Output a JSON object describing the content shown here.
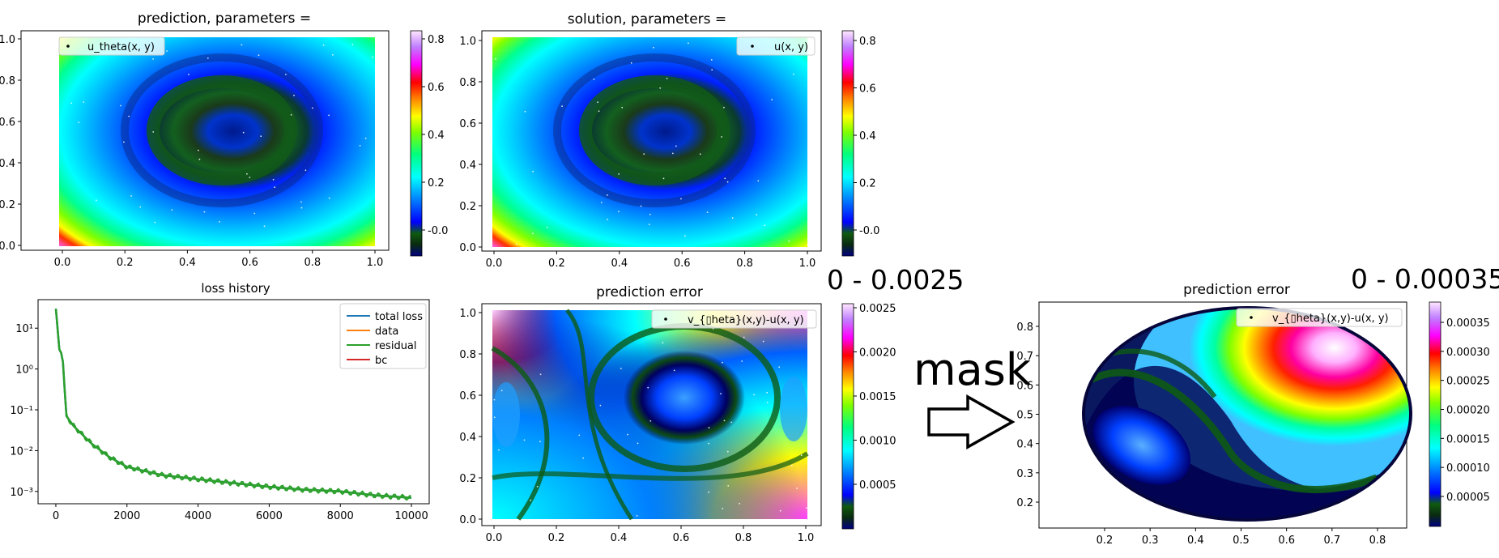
{
  "panels": {
    "prediction": {
      "title": "prediction, parameters =",
      "legend": "u_theta(x, y)",
      "x_ticks": [
        "0.0",
        "0.2",
        "0.4",
        "0.6",
        "0.8",
        "1.0"
      ],
      "y_ticks": [
        "0.0",
        "0.2",
        "0.4",
        "0.6",
        "0.8",
        "1.0"
      ],
      "colorbar_ticks": [
        "-0.0",
        "0.2",
        "0.4",
        "0.6",
        "0.8"
      ]
    },
    "solution": {
      "title": "solution, parameters =",
      "legend": "u(x, y)",
      "x_ticks": [
        "0.0",
        "0.2",
        "0.4",
        "0.6",
        "0.8",
        "1.0"
      ],
      "y_ticks": [
        "0.0",
        "0.2",
        "0.4",
        "0.6",
        "0.8",
        "1.0"
      ],
      "colorbar_ticks": [
        "-0.0",
        "0.2",
        "0.4",
        "0.6",
        "0.8"
      ]
    },
    "loss": {
      "title": "loss history",
      "x_ticks": [
        "0",
        "2000",
        "4000",
        "6000",
        "8000",
        "10000"
      ],
      "y_ticks": [
        "10⁻³",
        "10⁻²",
        "10⁻¹",
        "10⁰",
        "10¹"
      ],
      "legend": [
        "total loss",
        "data",
        "residual",
        "bc"
      ]
    },
    "error": {
      "title": "prediction error",
      "legend": "v_{▯heta}(x,y)-u(x, y)",
      "x_ticks": [
        "0.0",
        "0.2",
        "0.4",
        "0.6",
        "0.8",
        "1.0"
      ],
      "y_ticks": [
        "0.0",
        "0.2",
        "0.4",
        "0.6",
        "0.8",
        "1.0"
      ],
      "colorbar_ticks": [
        "0.0005",
        "0.0010",
        "0.0015",
        "0.0020",
        "0.0025"
      ],
      "range_label": "0 - 0.0025"
    },
    "masked_error": {
      "title": "prediction error",
      "legend": "v_{▯heta}(x,y)-u(x, y)",
      "x_ticks": [
        "0.2",
        "0.3",
        "0.4",
        "0.5",
        "0.6",
        "0.7",
        "0.8"
      ],
      "y_ticks": [
        "0.2",
        "0.3",
        "0.4",
        "0.5",
        "0.6",
        "0.7",
        "0.8"
      ],
      "colorbar_ticks": [
        "0.00005",
        "0.00010",
        "0.00015",
        "0.00020",
        "0.00025",
        "0.00030",
        "0.00035"
      ],
      "range_label": "0 - 0.00035"
    }
  },
  "arrow": {
    "label": "mask"
  },
  "colors": {
    "total_loss": "#1f77b4",
    "data": "#ff7f0e",
    "residual": "#2ca02c",
    "bc": "#d62728"
  },
  "chart_data": [
    {
      "type": "heatmap",
      "title": "prediction, parameters =",
      "series_label": "u_theta(x, y)",
      "xlim": [
        0,
        1
      ],
      "ylim": [
        0,
        1
      ],
      "colorbar_range": [
        -0.07,
        0.84
      ],
      "colormap": "gist_ncar",
      "minimum_near": [
        0.55,
        0.55
      ]
    },
    {
      "type": "heatmap",
      "title": "solution, parameters =",
      "series_label": "u(x, y)",
      "xlim": [
        0,
        1
      ],
      "ylim": [
        0,
        1
      ],
      "colorbar_range": [
        -0.07,
        0.84
      ],
      "colormap": "gist_ncar",
      "minimum_near": [
        0.55,
        0.55
      ]
    },
    {
      "type": "line",
      "title": "loss history",
      "yscale": "log",
      "xlim": [
        -500,
        10500
      ],
      "ylim": [
        0.0005,
        50
      ],
      "series": [
        {
          "name": "total loss",
          "x": [
            0,
            100,
            150,
            200,
            250,
            300,
            500,
            1000,
            1500,
            2000,
            3000,
            4000,
            5000,
            6000,
            7000,
            8000,
            9000,
            10000
          ],
          "values": [
            30,
            3,
            2.5,
            1.5,
            0.3,
            0.07,
            0.04,
            0.015,
            0.007,
            0.004,
            0.0025,
            0.002,
            0.0016,
            0.0013,
            0.0011,
            0.001,
            0.0008,
            0.0007
          ]
        },
        {
          "name": "data",
          "x": [
            0,
            10000
          ],
          "values": [
            null,
            null
          ]
        },
        {
          "name": "residual",
          "x": [
            0,
            100,
            150,
            200,
            250,
            300,
            500,
            1000,
            1500,
            2000,
            3000,
            4000,
            5000,
            6000,
            7000,
            8000,
            9000,
            10000
          ],
          "values": [
            30,
            3,
            2.5,
            1.5,
            0.3,
            0.07,
            0.04,
            0.015,
            0.007,
            0.004,
            0.0025,
            0.002,
            0.0016,
            0.0013,
            0.0011,
            0.001,
            0.0008,
            0.0007
          ]
        },
        {
          "name": "bc",
          "x": [
            0,
            10000
          ],
          "values": [
            null,
            null
          ]
        }
      ]
    },
    {
      "type": "heatmap",
      "title": "prediction error",
      "series_label": "v_{▯heta}(x,y)-u(x, y)",
      "xlim": [
        0,
        1
      ],
      "ylim": [
        0,
        1
      ],
      "colorbar_range": [
        0,
        0.0025
      ],
      "colormap": "gist_ncar"
    },
    {
      "type": "heatmap",
      "title": "prediction error",
      "series_label": "v_{▯heta}(x,y)-u(x, y)",
      "domain": "ellipse",
      "xlim": [
        0.12,
        0.88
      ],
      "ylim": [
        0.12,
        0.88
      ],
      "colorbar_range": [
        0,
        0.00038
      ],
      "colormap": "gist_ncar",
      "maximum_near": [
        0.6,
        0.57
      ]
    }
  ]
}
